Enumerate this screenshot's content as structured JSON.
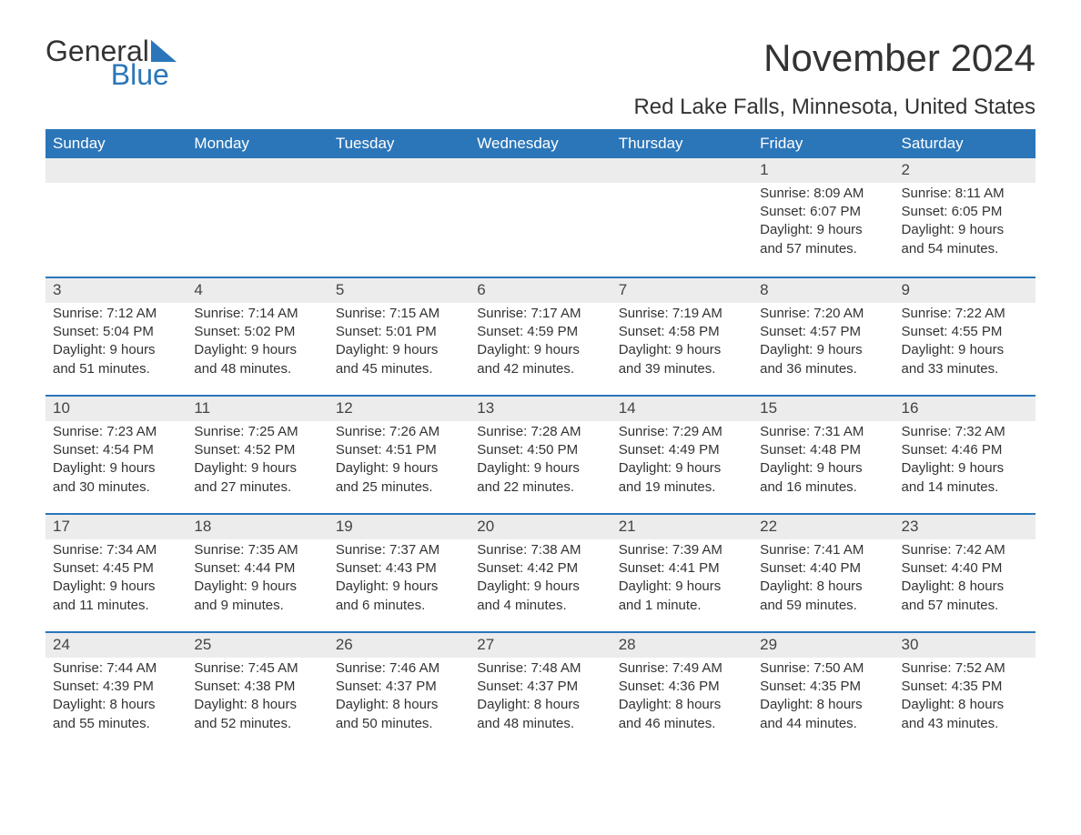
{
  "logo": {
    "word1": "General",
    "word2": "Blue",
    "accent_color": "#2b76b9"
  },
  "title": "November 2024",
  "subtitle": "Red Lake Falls, Minnesota, United States",
  "colors": {
    "header_bg": "#2b76b9",
    "header_text": "#ffffff",
    "daynum_bg": "#ececec",
    "week_border": "#2b76b9",
    "text": "#333333",
    "page_bg": "#ffffff"
  },
  "fontsize": {
    "title": 42,
    "subtitle": 24,
    "dow": 17,
    "daynum": 17,
    "body": 15
  },
  "dow": [
    "Sunday",
    "Monday",
    "Tuesday",
    "Wednesday",
    "Thursday",
    "Friday",
    "Saturday"
  ],
  "weeks": [
    [
      null,
      null,
      null,
      null,
      null,
      {
        "n": "1",
        "sunrise": "Sunrise: 8:09 AM",
        "sunset": "Sunset: 6:07 PM",
        "daylight1": "Daylight: 9 hours",
        "daylight2": "and 57 minutes."
      },
      {
        "n": "2",
        "sunrise": "Sunrise: 8:11 AM",
        "sunset": "Sunset: 6:05 PM",
        "daylight1": "Daylight: 9 hours",
        "daylight2": "and 54 minutes."
      }
    ],
    [
      {
        "n": "3",
        "sunrise": "Sunrise: 7:12 AM",
        "sunset": "Sunset: 5:04 PM",
        "daylight1": "Daylight: 9 hours",
        "daylight2": "and 51 minutes."
      },
      {
        "n": "4",
        "sunrise": "Sunrise: 7:14 AM",
        "sunset": "Sunset: 5:02 PM",
        "daylight1": "Daylight: 9 hours",
        "daylight2": "and 48 minutes."
      },
      {
        "n": "5",
        "sunrise": "Sunrise: 7:15 AM",
        "sunset": "Sunset: 5:01 PM",
        "daylight1": "Daylight: 9 hours",
        "daylight2": "and 45 minutes."
      },
      {
        "n": "6",
        "sunrise": "Sunrise: 7:17 AM",
        "sunset": "Sunset: 4:59 PM",
        "daylight1": "Daylight: 9 hours",
        "daylight2": "and 42 minutes."
      },
      {
        "n": "7",
        "sunrise": "Sunrise: 7:19 AM",
        "sunset": "Sunset: 4:58 PM",
        "daylight1": "Daylight: 9 hours",
        "daylight2": "and 39 minutes."
      },
      {
        "n": "8",
        "sunrise": "Sunrise: 7:20 AM",
        "sunset": "Sunset: 4:57 PM",
        "daylight1": "Daylight: 9 hours",
        "daylight2": "and 36 minutes."
      },
      {
        "n": "9",
        "sunrise": "Sunrise: 7:22 AM",
        "sunset": "Sunset: 4:55 PM",
        "daylight1": "Daylight: 9 hours",
        "daylight2": "and 33 minutes."
      }
    ],
    [
      {
        "n": "10",
        "sunrise": "Sunrise: 7:23 AM",
        "sunset": "Sunset: 4:54 PM",
        "daylight1": "Daylight: 9 hours",
        "daylight2": "and 30 minutes."
      },
      {
        "n": "11",
        "sunrise": "Sunrise: 7:25 AM",
        "sunset": "Sunset: 4:52 PM",
        "daylight1": "Daylight: 9 hours",
        "daylight2": "and 27 minutes."
      },
      {
        "n": "12",
        "sunrise": "Sunrise: 7:26 AM",
        "sunset": "Sunset: 4:51 PM",
        "daylight1": "Daylight: 9 hours",
        "daylight2": "and 25 minutes."
      },
      {
        "n": "13",
        "sunrise": "Sunrise: 7:28 AM",
        "sunset": "Sunset: 4:50 PM",
        "daylight1": "Daylight: 9 hours",
        "daylight2": "and 22 minutes."
      },
      {
        "n": "14",
        "sunrise": "Sunrise: 7:29 AM",
        "sunset": "Sunset: 4:49 PM",
        "daylight1": "Daylight: 9 hours",
        "daylight2": "and 19 minutes."
      },
      {
        "n": "15",
        "sunrise": "Sunrise: 7:31 AM",
        "sunset": "Sunset: 4:48 PM",
        "daylight1": "Daylight: 9 hours",
        "daylight2": "and 16 minutes."
      },
      {
        "n": "16",
        "sunrise": "Sunrise: 7:32 AM",
        "sunset": "Sunset: 4:46 PM",
        "daylight1": "Daylight: 9 hours",
        "daylight2": "and 14 minutes."
      }
    ],
    [
      {
        "n": "17",
        "sunrise": "Sunrise: 7:34 AM",
        "sunset": "Sunset: 4:45 PM",
        "daylight1": "Daylight: 9 hours",
        "daylight2": "and 11 minutes."
      },
      {
        "n": "18",
        "sunrise": "Sunrise: 7:35 AM",
        "sunset": "Sunset: 4:44 PM",
        "daylight1": "Daylight: 9 hours",
        "daylight2": "and 9 minutes."
      },
      {
        "n": "19",
        "sunrise": "Sunrise: 7:37 AM",
        "sunset": "Sunset: 4:43 PM",
        "daylight1": "Daylight: 9 hours",
        "daylight2": "and 6 minutes."
      },
      {
        "n": "20",
        "sunrise": "Sunrise: 7:38 AM",
        "sunset": "Sunset: 4:42 PM",
        "daylight1": "Daylight: 9 hours",
        "daylight2": "and 4 minutes."
      },
      {
        "n": "21",
        "sunrise": "Sunrise: 7:39 AM",
        "sunset": "Sunset: 4:41 PM",
        "daylight1": "Daylight: 9 hours",
        "daylight2": "and 1 minute."
      },
      {
        "n": "22",
        "sunrise": "Sunrise: 7:41 AM",
        "sunset": "Sunset: 4:40 PM",
        "daylight1": "Daylight: 8 hours",
        "daylight2": "and 59 minutes."
      },
      {
        "n": "23",
        "sunrise": "Sunrise: 7:42 AM",
        "sunset": "Sunset: 4:40 PM",
        "daylight1": "Daylight: 8 hours",
        "daylight2": "and 57 minutes."
      }
    ],
    [
      {
        "n": "24",
        "sunrise": "Sunrise: 7:44 AM",
        "sunset": "Sunset: 4:39 PM",
        "daylight1": "Daylight: 8 hours",
        "daylight2": "and 55 minutes."
      },
      {
        "n": "25",
        "sunrise": "Sunrise: 7:45 AM",
        "sunset": "Sunset: 4:38 PM",
        "daylight1": "Daylight: 8 hours",
        "daylight2": "and 52 minutes."
      },
      {
        "n": "26",
        "sunrise": "Sunrise: 7:46 AM",
        "sunset": "Sunset: 4:37 PM",
        "daylight1": "Daylight: 8 hours",
        "daylight2": "and 50 minutes."
      },
      {
        "n": "27",
        "sunrise": "Sunrise: 7:48 AM",
        "sunset": "Sunset: 4:37 PM",
        "daylight1": "Daylight: 8 hours",
        "daylight2": "and 48 minutes."
      },
      {
        "n": "28",
        "sunrise": "Sunrise: 7:49 AM",
        "sunset": "Sunset: 4:36 PM",
        "daylight1": "Daylight: 8 hours",
        "daylight2": "and 46 minutes."
      },
      {
        "n": "29",
        "sunrise": "Sunrise: 7:50 AM",
        "sunset": "Sunset: 4:35 PM",
        "daylight1": "Daylight: 8 hours",
        "daylight2": "and 44 minutes."
      },
      {
        "n": "30",
        "sunrise": "Sunrise: 7:52 AM",
        "sunset": "Sunset: 4:35 PM",
        "daylight1": "Daylight: 8 hours",
        "daylight2": "and 43 minutes."
      }
    ]
  ]
}
